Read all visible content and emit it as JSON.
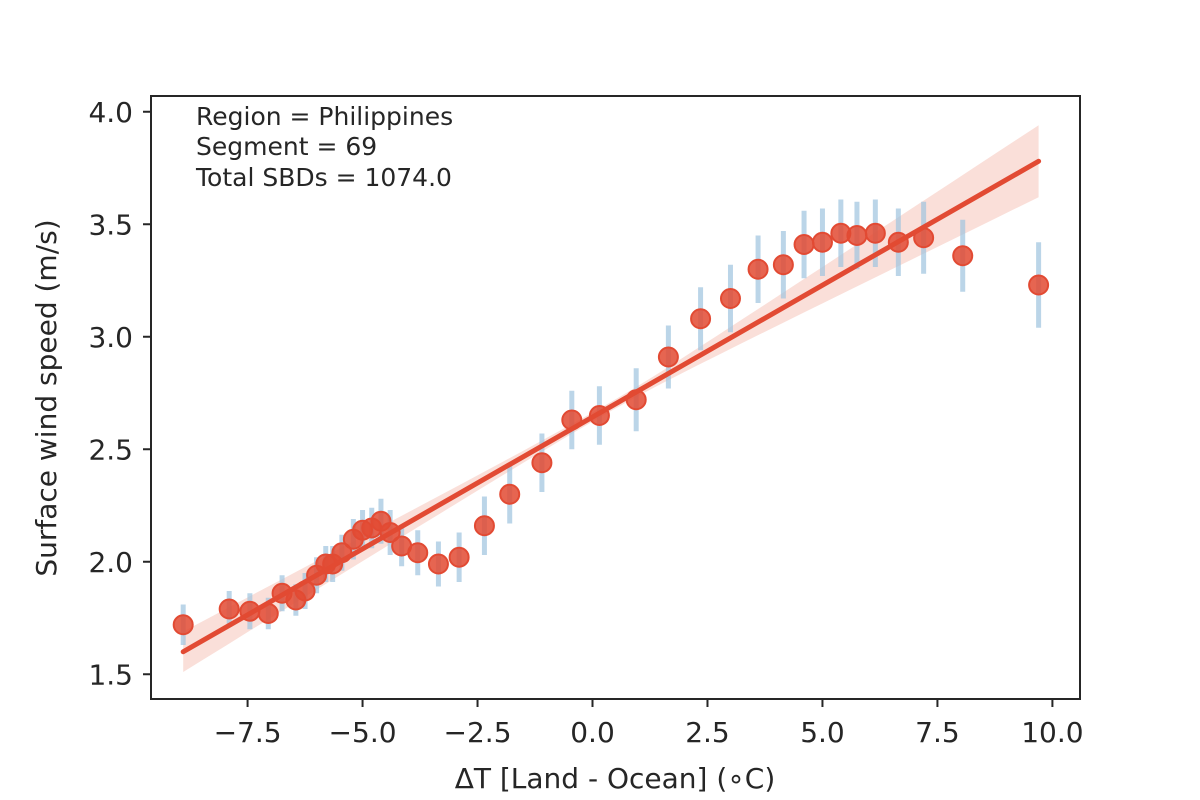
{
  "chart_data": {
    "type": "scatter",
    "title": "",
    "xlabel": "ΔT [Land - Ocean] (∘C)",
    "ylabel": "Surface wind speed (m/s)",
    "xlim": [
      -9.6,
      10.6
    ],
    "ylim": [
      1.39,
      4.07
    ],
    "xticks": [
      -7.5,
      -5.0,
      -2.5,
      0.0,
      2.5,
      5.0,
      7.5,
      10.0
    ],
    "xtick_labels": [
      "−7.5",
      "−5.0",
      "−2.5",
      "0.0",
      "2.5",
      "5.0",
      "7.5",
      "10.0"
    ],
    "yticks": [
      1.5,
      2.0,
      2.5,
      3.0,
      3.5,
      4.0
    ],
    "ytick_labels": [
      "1.5",
      "2.0",
      "2.5",
      "3.0",
      "3.5",
      "4.0"
    ],
    "grid": false,
    "annotations": [
      "Region = Philippines",
      "Segment = 69",
      "Total SBDs = 1074.0"
    ],
    "colors": {
      "points": "#e24a33",
      "errorbars": "#9ec3de",
      "fit_line": "#e24a33",
      "ci_band": "#f7c9c0"
    },
    "series": [
      {
        "name": "binned means",
        "x": [
          -8.9,
          -7.9,
          -7.45,
          -7.05,
          -6.75,
          -6.45,
          -6.25,
          -6.0,
          -5.8,
          -5.65,
          -5.45,
          -5.2,
          -5.0,
          -4.8,
          -4.6,
          -4.4,
          -4.15,
          -3.8,
          -3.35,
          -2.9,
          -2.35,
          -1.8,
          -1.1,
          -0.45,
          0.15,
          0.95,
          1.65,
          2.35,
          3.0,
          3.6,
          4.15,
          4.6,
          5.0,
          5.4,
          5.75,
          6.15,
          6.65,
          7.2,
          8.05,
          9.7
        ],
        "y": [
          1.72,
          1.79,
          1.78,
          1.77,
          1.86,
          1.83,
          1.87,
          1.94,
          1.99,
          1.99,
          2.04,
          2.1,
          2.14,
          2.15,
          2.18,
          2.13,
          2.07,
          2.04,
          1.99,
          2.02,
          2.16,
          2.3,
          2.44,
          2.63,
          2.65,
          2.72,
          2.91,
          3.08,
          3.17,
          3.3,
          3.32,
          3.41,
          3.42,
          3.46,
          3.45,
          3.46,
          3.42,
          3.44,
          3.36,
          3.23
        ],
        "err": [
          0.09,
          0.08,
          0.08,
          0.07,
          0.08,
          0.07,
          0.08,
          0.08,
          0.08,
          0.08,
          0.08,
          0.09,
          0.09,
          0.09,
          0.1,
          0.1,
          0.09,
          0.1,
          0.1,
          0.11,
          0.13,
          0.13,
          0.13,
          0.13,
          0.13,
          0.14,
          0.14,
          0.14,
          0.15,
          0.15,
          0.15,
          0.15,
          0.15,
          0.15,
          0.15,
          0.15,
          0.15,
          0.16,
          0.16,
          0.19
        ]
      }
    ],
    "fit": {
      "x_range": [
        -8.9,
        9.7
      ],
      "y_range": [
        1.6,
        3.78
      ],
      "ci_half_width_at_ends": [
        0.09,
        0.16
      ],
      "ci_half_width_at_center": 0.02
    }
  }
}
